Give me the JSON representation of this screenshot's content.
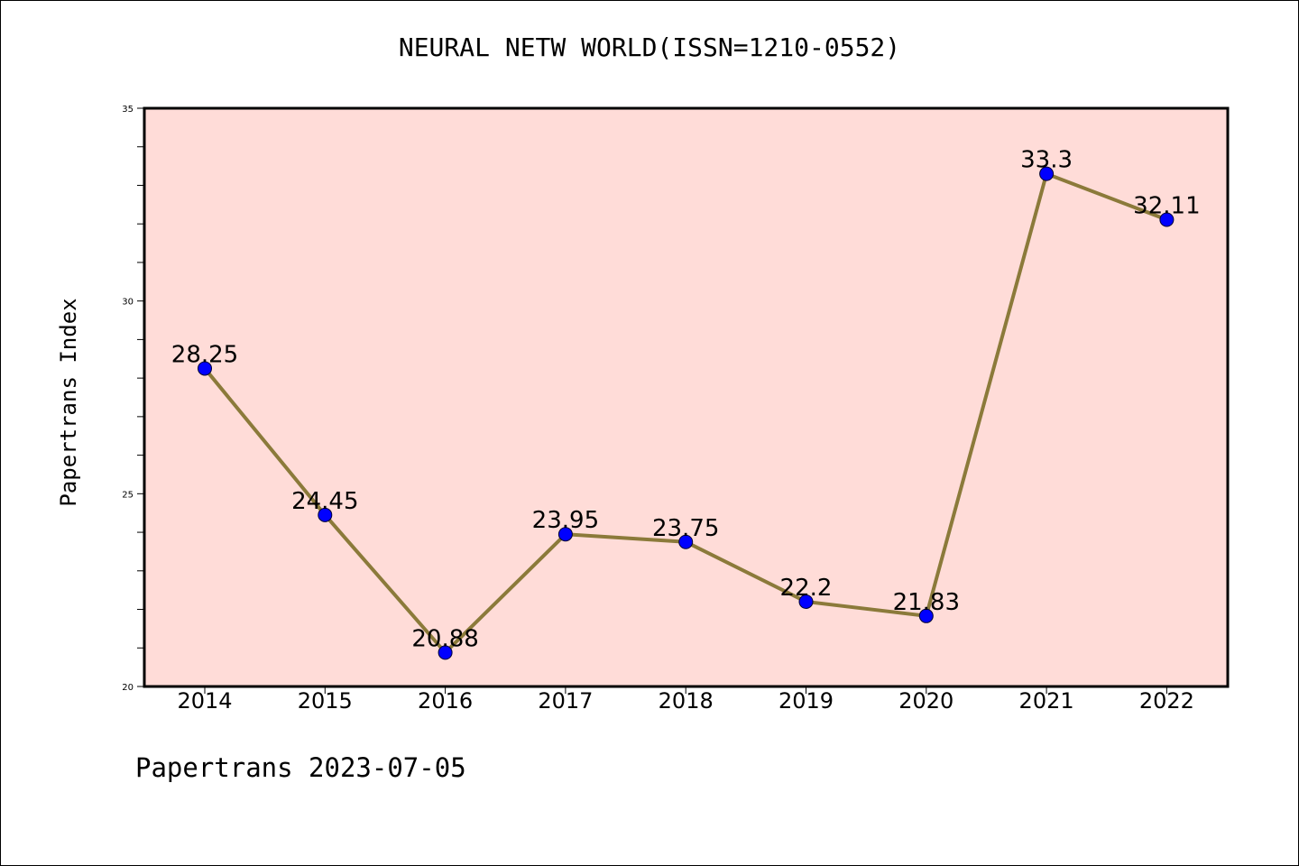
{
  "chart_data": {
    "type": "line",
    "title": "NEURAL NETW WORLD(ISSN=1210-0552)",
    "xlabel": "",
    "ylabel": "Papertrans Index",
    "categories": [
      "2014",
      "2015",
      "2016",
      "2017",
      "2018",
      "2019",
      "2020",
      "2021",
      "2022"
    ],
    "values": [
      28.25,
      24.45,
      20.88,
      23.95,
      23.75,
      22.2,
      21.83,
      33.3,
      32.11
    ],
    "data_labels": [
      "28.25",
      "24.45",
      "20.88",
      "23.95",
      "23.75",
      "22.2",
      "21.83",
      "33.3",
      "32.11"
    ],
    "ylim": [
      20,
      35
    ],
    "yticks": [
      "20",
      "25",
      "30",
      "35"
    ],
    "grid": false,
    "legend": "none",
    "colors": {
      "background": "#ffdcd8",
      "line": "#8b7a3a",
      "marker": "#0000ff"
    }
  },
  "footer": {
    "note": "Papertrans 2023-07-05"
  }
}
